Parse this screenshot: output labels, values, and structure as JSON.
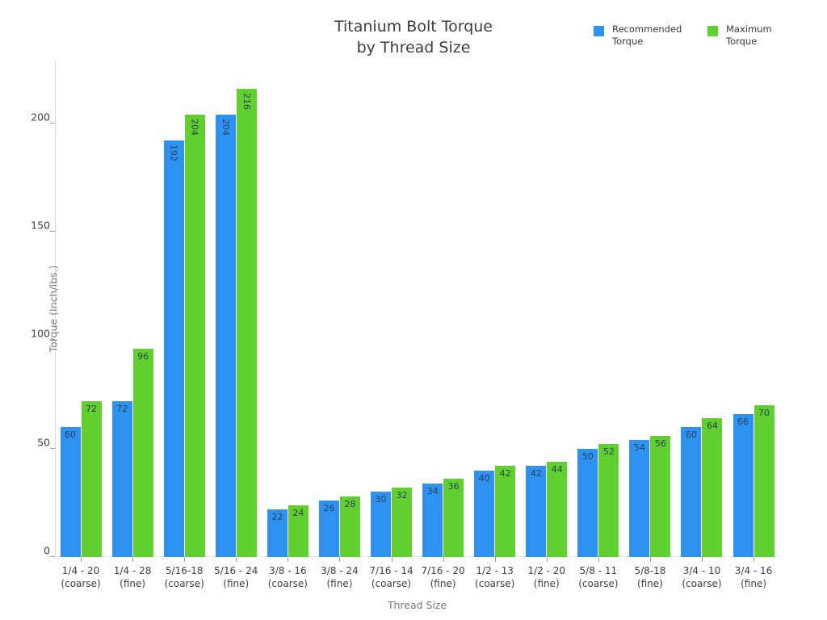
{
  "chart_data": {
    "type": "bar",
    "title": "Titanium Bolt Torque\nby Thread Size",
    "xlabel": "Thread Size",
    "ylabel": "Torque (Inch/lbs.)",
    "categories": [
      "1/4 - 20\n(coarse)",
      "1/4 - 28\n(fine)",
      "5/16-18\n(coarse)",
      "5/16 - 24\n(fine)",
      "3/8 - 16\n(coarse)",
      "3/8 - 24\n(fine)",
      "7/16 - 14\n(coarse)",
      "7/16 - 20\n(fine)",
      "1/2 - 13\n(coarse)",
      "1/2 - 20\n(fine)",
      "5/8 - 11\n(coarse)",
      "5/8-18\n(fine)",
      "3/4 - 10\n(coarse)",
      "3/4 - 16\n(fine)"
    ],
    "series": [
      {
        "name": "Recommended Torque",
        "color": "#2e92f0",
        "values": [
          60,
          72,
          192,
          204,
          22,
          26,
          30,
          34,
          40,
          42,
          50,
          54,
          60,
          66
        ]
      },
      {
        "name": "Maximum Torque",
        "color": "#61cf2e",
        "values": [
          72,
          96,
          204,
          216,
          24,
          28,
          32,
          36,
          42,
          44,
          52,
          56,
          64,
          70
        ]
      }
    ],
    "yticks": [
      0,
      50,
      100,
      150,
      200
    ],
    "ylim": [
      0,
      229
    ],
    "grid": false,
    "legend_position": "top-right",
    "bar_label_color": "#2a3f5f",
    "vertical_label_threshold": 100
  }
}
